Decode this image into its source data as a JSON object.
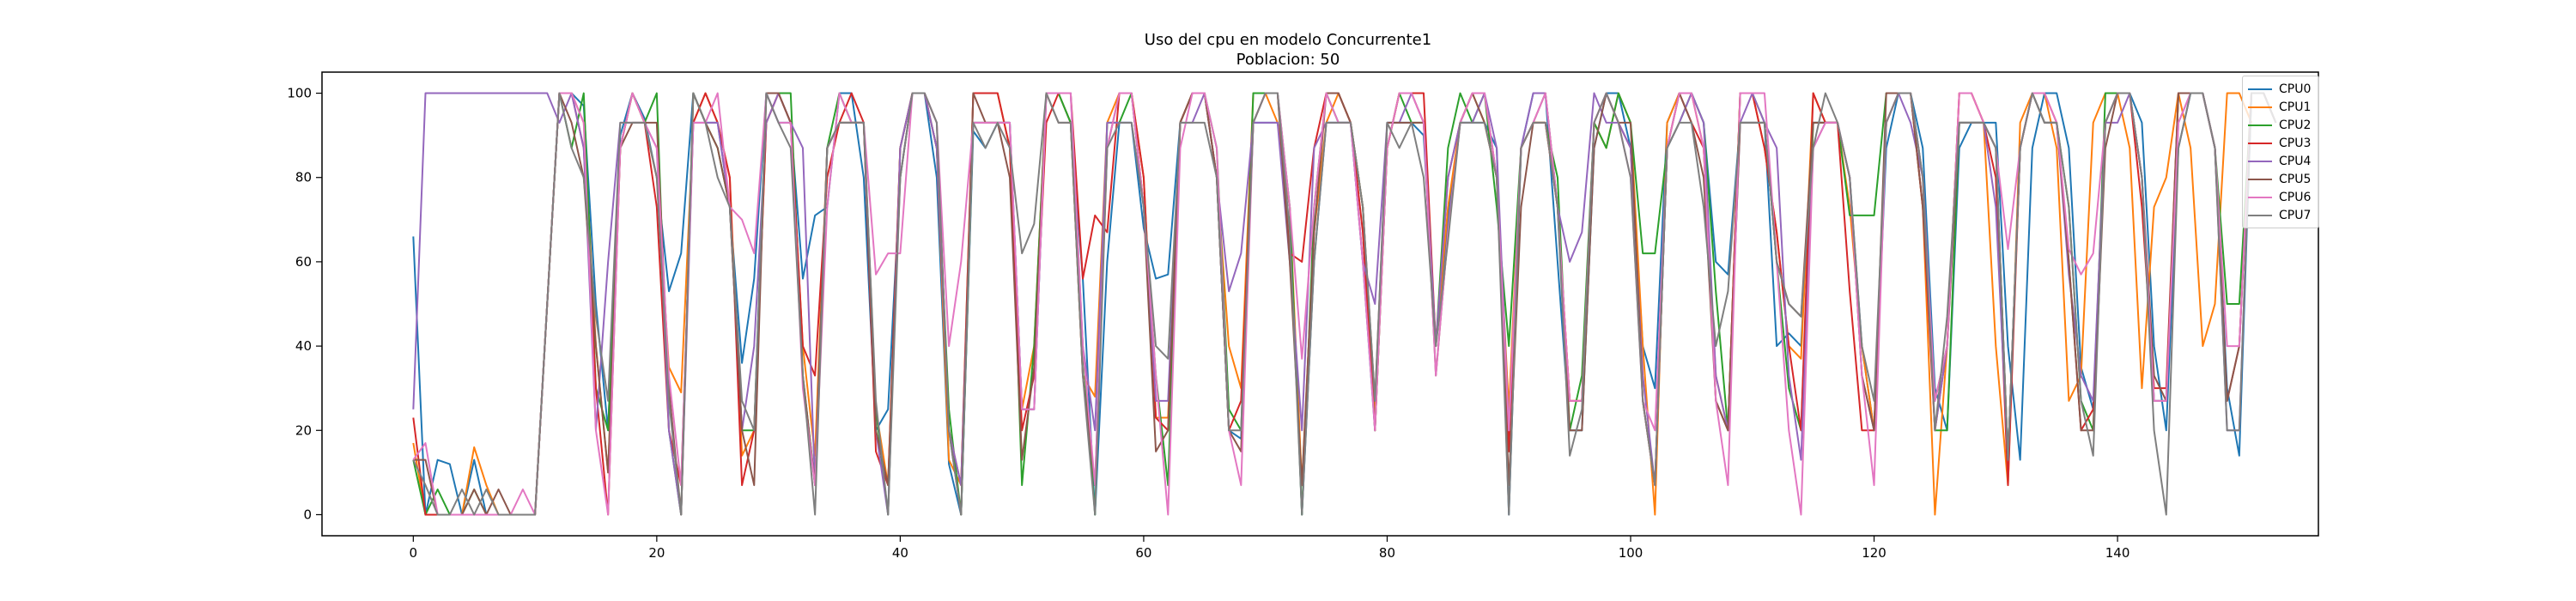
{
  "chart_data": {
    "type": "line",
    "title": "Uso del cpu en modelo Concurrente1",
    "subtitle": "Poblacion: 50",
    "xlabel": "",
    "ylabel": "",
    "xlim": [
      -7.5,
      156.5
    ],
    "ylim": [
      -5,
      105
    ],
    "xticks": [
      0,
      20,
      40,
      60,
      80,
      100,
      120,
      140
    ],
    "yticks": [
      0,
      20,
      40,
      60,
      80,
      100
    ],
    "grid": false,
    "legend_position": "top-right",
    "series": [
      {
        "name": "CPU0",
        "color": "#1f77b4",
        "y": [
          66,
          0,
          13,
          12,
          0,
          13,
          0,
          0,
          0,
          0,
          0,
          50,
          100,
          100,
          97,
          50,
          20,
          90,
          100,
          94,
          80,
          53,
          62,
          100,
          93,
          93,
          73,
          36,
          56,
          100,
          93,
          93,
          56,
          71,
          73,
          100,
          100,
          80,
          20,
          25,
          80,
          100,
          100,
          80,
          12,
          0,
          91,
          87,
          93,
          93,
          25,
          25,
          100,
          100,
          93,
          56,
          0,
          60,
          93,
          93,
          68,
          56,
          57,
          93,
          100,
          100,
          80,
          20,
          18,
          93,
          93,
          93,
          73,
          0,
          60,
          93,
          93,
          93,
          60,
          20,
          93,
          93,
          93,
          90,
          40,
          70,
          93,
          93,
          93,
          87,
          0,
          87,
          100,
          100,
          60,
          20,
          20,
          87,
          100,
          100,
          87,
          40,
          30,
          93,
          100,
          100,
          93,
          60,
          57,
          93,
          93,
          93,
          40,
          43,
          40,
          93,
          93,
          93,
          80,
          40,
          20,
          87,
          100,
          100,
          87,
          30,
          20,
          87,
          93,
          93,
          93,
          40,
          13,
          87,
          100,
          100,
          87,
          35,
          25,
          93,
          100,
          100,
          93,
          40,
          20,
          87,
          100,
          100,
          87,
          30,
          14,
          100,
          100,
          93
        ]
      },
      {
        "name": "CPU1",
        "color": "#ff7f0e",
        "y": [
          17,
          0,
          0,
          0,
          0,
          16,
          7,
          0,
          0,
          0,
          0,
          50,
          100,
          100,
          93,
          40,
          10,
          87,
          100,
          93,
          80,
          35,
          29,
          93,
          100,
          93,
          80,
          14,
          20,
          93,
          100,
          93,
          40,
          14,
          87,
          93,
          93,
          93,
          25,
          7,
          87,
          100,
          100,
          87,
          13,
          7,
          100,
          100,
          100,
          87,
          25,
          40,
          100,
          100,
          93,
          33,
          28,
          93,
          100,
          100,
          80,
          23,
          23,
          93,
          100,
          100,
          80,
          40,
          30,
          100,
          100,
          93,
          73,
          7,
          67,
          93,
          100,
          93,
          73,
          25,
          87,
          100,
          100,
          93,
          40,
          73,
          93,
          100,
          93,
          80,
          25,
          87,
          93,
          93,
          73,
          27,
          27,
          93,
          87,
          100,
          93,
          40,
          0,
          93,
          100,
          100,
          87,
          33,
          20,
          100,
          100,
          87,
          67,
          40,
          37,
          100,
          93,
          93,
          73,
          40,
          20,
          93,
          100,
          100,
          73,
          0,
          40,
          100,
          100,
          93,
          40,
          7,
          93,
          100,
          100,
          87,
          27,
          33,
          93,
          100,
          100,
          87,
          30,
          73,
          80,
          100,
          87,
          40,
          50,
          100,
          100,
          93
        ]
      },
      {
        "name": "CPU2",
        "color": "#2ca02c",
        "y": [
          13,
          0,
          6,
          0,
          0,
          6,
          0,
          0,
          0,
          0,
          0,
          50,
          100,
          87,
          100,
          30,
          20,
          87,
          100,
          93,
          100,
          20,
          0,
          100,
          93,
          87,
          73,
          20,
          20,
          100,
          100,
          100,
          33,
          7,
          87,
          100,
          93,
          93,
          25,
          0,
          87,
          100,
          100,
          87,
          25,
          0,
          93,
          93,
          93,
          93,
          7,
          40,
          100,
          100,
          93,
          40,
          0,
          93,
          93,
          100,
          73,
          33,
          7,
          93,
          100,
          100,
          87,
          25,
          20,
          100,
          100,
          100,
          73,
          0,
          73,
          100,
          93,
          93,
          73,
          20,
          87,
          100,
          93,
          93,
          40,
          87,
          100,
          93,
          100,
          73,
          40,
          87,
          93,
          93,
          80,
          20,
          33,
          93,
          87,
          100,
          93,
          62,
          62,
          87,
          93,
          100,
          93,
          53,
          20,
          100,
          100,
          93,
          60,
          30,
          20,
          93,
          93,
          93,
          71,
          71,
          71,
          100,
          100,
          100,
          80,
          20,
          20,
          93,
          93,
          93,
          87,
          13,
          87,
          100,
          93,
          93,
          73,
          27,
          20,
          100,
          100,
          100,
          80,
          27,
          27,
          100,
          100,
          100,
          87,
          50,
          50,
          100,
          100,
          93
        ]
      },
      {
        "name": "CPU3",
        "color": "#d62728",
        "y": [
          23,
          0,
          0,
          0,
          0,
          0,
          0,
          0,
          0,
          0,
          0,
          50,
          100,
          100,
          87,
          30,
          0,
          87,
          100,
          93,
          73,
          20,
          7,
          93,
          100,
          93,
          80,
          7,
          20,
          93,
          100,
          93,
          40,
          33,
          80,
          93,
          100,
          93,
          15,
          7,
          87,
          100,
          100,
          87,
          20,
          7,
          100,
          100,
          100,
          87,
          20,
          33,
          93,
          100,
          100,
          56,
          71,
          67,
          100,
          100,
          80,
          23,
          20,
          93,
          100,
          100,
          80,
          20,
          27,
          93,
          100,
          100,
          62,
          60,
          87,
          100,
          100,
          93,
          67,
          20,
          87,
          100,
          100,
          100,
          40,
          80,
          93,
          100,
          100,
          80,
          15,
          87,
          93,
          93,
          73,
          27,
          27,
          93,
          100,
          93,
          87,
          27,
          7,
          87,
          100,
          93,
          87,
          27,
          20,
          100,
          100,
          87,
          67,
          40,
          20,
          100,
          93,
          93,
          53,
          20,
          20,
          93,
          100,
          100,
          73,
          20,
          40,
          100,
          100,
          93,
          80,
          7,
          87,
          100,
          100,
          93,
          60,
          20,
          25,
          93,
          100,
          100,
          73,
          30,
          30,
          100,
          100,
          100,
          87,
          27,
          40,
          100,
          100,
          93
        ]
      },
      {
        "name": "CPU4",
        "color": "#9467bd",
        "y": [
          25,
          100,
          100,
          100,
          100,
          100,
          100,
          100,
          100,
          100,
          100,
          100,
          93,
          100,
          87,
          20,
          60,
          93,
          93,
          93,
          87,
          20,
          0,
          93,
          93,
          93,
          73,
          20,
          40,
          93,
          100,
          93,
          87,
          7,
          87,
          93,
          93,
          93,
          20,
          0,
          87,
          100,
          100,
          87,
          20,
          7,
          93,
          93,
          93,
          93,
          25,
          25,
          100,
          100,
          100,
          40,
          20,
          93,
          93,
          93,
          73,
          27,
          27,
          93,
          93,
          100,
          80,
          53,
          62,
          93,
          93,
          93,
          60,
          20,
          87,
          93,
          93,
          93,
          60,
          50,
          93,
          93,
          100,
          93,
          40,
          80,
          93,
          93,
          100,
          87,
          20,
          87,
          100,
          100,
          73,
          60,
          67,
          100,
          93,
          93,
          87,
          33,
          7,
          87,
          93,
          100,
          93,
          33,
          20,
          93,
          100,
          93,
          87,
          33,
          13,
          87,
          93,
          93,
          80,
          33,
          20,
          93,
          100,
          93,
          80,
          20,
          40,
          93,
          93,
          93,
          73,
          13,
          87,
          100,
          93,
          93,
          57,
          33,
          27,
          93,
          93,
          100,
          80,
          27,
          27,
          93,
          100,
          100,
          87,
          20,
          20,
          100,
          100,
          93
        ]
      },
      {
        "name": "CPU5",
        "color": "#8c564b",
        "y": [
          13,
          13,
          0,
          0,
          0,
          6,
          0,
          6,
          0,
          0,
          0,
          50,
          100,
          93,
          80,
          40,
          10,
          87,
          93,
          93,
          93,
          30,
          0,
          100,
          93,
          87,
          73,
          20,
          7,
          100,
          100,
          93,
          33,
          7,
          87,
          93,
          93,
          93,
          20,
          7,
          80,
          100,
          100,
          93,
          20,
          0,
          100,
          93,
          93,
          80,
          13,
          35,
          100,
          93,
          93,
          33,
          7,
          87,
          100,
          100,
          73,
          15,
          20,
          93,
          100,
          100,
          80,
          20,
          15,
          93,
          100,
          100,
          60,
          7,
          67,
          100,
          100,
          93,
          73,
          27,
          93,
          93,
          93,
          93,
          33,
          67,
          93,
          100,
          93,
          80,
          7,
          73,
          93,
          100,
          73,
          20,
          20,
          87,
          100,
          93,
          93,
          27,
          7,
          87,
          100,
          93,
          80,
          27,
          20,
          93,
          93,
          93,
          60,
          50,
          47,
          93,
          93,
          93,
          80,
          33,
          20,
          100,
          100,
          100,
          73,
          27,
          40,
          93,
          93,
          93,
          87,
          13,
          87,
          100,
          93,
          93,
          60,
          20,
          20,
          87,
          100,
          100,
          80,
          33,
          27,
          100,
          100,
          100,
          87,
          27,
          40,
          100,
          100,
          93
        ]
      },
      {
        "name": "CPU6",
        "color": "#e377c2",
        "y": [
          13,
          17,
          0,
          0,
          0,
          0,
          0,
          0,
          0,
          6,
          0,
          50,
          100,
          100,
          93,
          20,
          0,
          87,
          100,
          93,
          87,
          33,
          7,
          93,
          93,
          100,
          73,
          70,
          62,
          100,
          93,
          93,
          30,
          7,
          73,
          100,
          93,
          93,
          57,
          62,
          62,
          100,
          100,
          93,
          40,
          60,
          93,
          93,
          93,
          93,
          25,
          25,
          100,
          100,
          100,
          40,
          7,
          87,
          100,
          100,
          73,
          33,
          0,
          87,
          100,
          100,
          87,
          20,
          7,
          93,
          100,
          100,
          73,
          37,
          73,
          100,
          93,
          93,
          60,
          20,
          87,
          100,
          100,
          93,
          33,
          67,
          93,
          100,
          100,
          80,
          20,
          87,
          93,
          100,
          73,
          27,
          27,
          93,
          100,
          93,
          80,
          27,
          20,
          87,
          100,
          100,
          87,
          27,
          7,
          100,
          100,
          100,
          60,
          20,
          0,
          87,
          93,
          93,
          80,
          33,
          7,
          93,
          100,
          100,
          80,
          27,
          40,
          100,
          100,
          93,
          87,
          63,
          87,
          100,
          100,
          93,
          63,
          57,
          62,
          93,
          100,
          100,
          80,
          27,
          27,
          93,
          100,
          100,
          87,
          40,
          40,
          100,
          100,
          93
        ]
      },
      {
        "name": "CPU7",
        "color": "#7f7f7f",
        "y": [
          13,
          7,
          0,
          0,
          6,
          0,
          6,
          0,
          0,
          0,
          0,
          50,
          100,
          87,
          80,
          47,
          27,
          93,
          93,
          93,
          80,
          27,
          0,
          100,
          93,
          80,
          73,
          27,
          20,
          100,
          93,
          87,
          33,
          0,
          87,
          93,
          93,
          93,
          27,
          0,
          80,
          100,
          100,
          93,
          20,
          0,
          93,
          87,
          93,
          87,
          62,
          69,
          100,
          93,
          93,
          33,
          0,
          87,
          93,
          93,
          73,
          40,
          37,
          93,
          93,
          93,
          80,
          20,
          20,
          93,
          100,
          100,
          67,
          0,
          60,
          93,
          93,
          93,
          73,
          27,
          93,
          87,
          93,
          80,
          40,
          65,
          93,
          93,
          93,
          80,
          0,
          87,
          93,
          93,
          73,
          14,
          25,
          93,
          100,
          93,
          80,
          27,
          7,
          87,
          93,
          93,
          73,
          40,
          53,
          93,
          93,
          93,
          60,
          50,
          47,
          87,
          100,
          93,
          80,
          40,
          27,
          93,
          100,
          100,
          80,
          20,
          47,
          93,
          93,
          93,
          87,
          13,
          87,
          100,
          93,
          93,
          73,
          27,
          14,
          93,
          100,
          100,
          80,
          20,
          0,
          87,
          100,
          100,
          87,
          20,
          20,
          100,
          100,
          93
        ]
      }
    ]
  }
}
